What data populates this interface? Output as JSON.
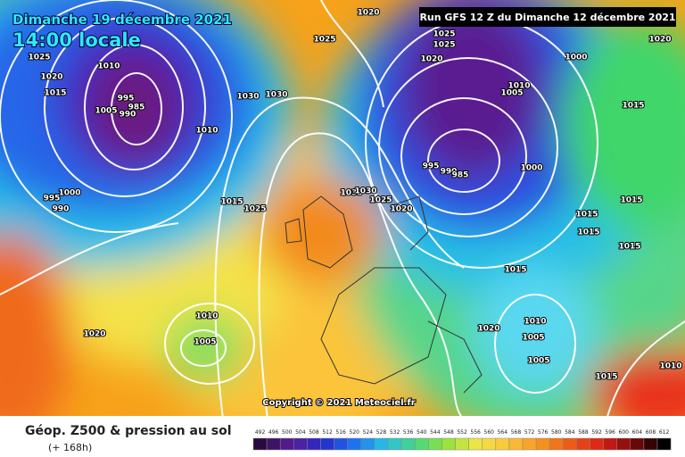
{
  "header": {
    "date": "Dimanche 19 décembre 2021",
    "time": "14:00 locale",
    "run": "Run GFS 12 Z du Dimanche 12 décembre 2021"
  },
  "copyright": "Copyright © 2021 Meteociel.fr",
  "footer": {
    "title": "Géop. Z500 & pression au sol",
    "lead": "(+ 168h)"
  },
  "color_scale": {
    "values": [
      492,
      496,
      500,
      504,
      508,
      512,
      516,
      520,
      524,
      528,
      532,
      536,
      540,
      544,
      548,
      552,
      556,
      560,
      564,
      568,
      572,
      576,
      580,
      584,
      588,
      592,
      596,
      600,
      604,
      608,
      612
    ]
  },
  "isobar_labels": [
    1020,
    1025,
    1025,
    1010,
    1020,
    1015,
    995,
    985,
    1005,
    990,
    1010,
    1030,
    1030,
    1025,
    1025,
    1020,
    1000,
    1020,
    1010,
    1005,
    1015,
    995,
    990,
    985,
    1000,
    1000,
    995,
    990,
    1015,
    1025,
    1035,
    1030,
    1025,
    1020,
    1015,
    1015,
    1015,
    1015,
    1015,
    1010,
    1005,
    1020,
    1020,
    1010,
    1005,
    1005,
    1015,
    1010
  ]
}
